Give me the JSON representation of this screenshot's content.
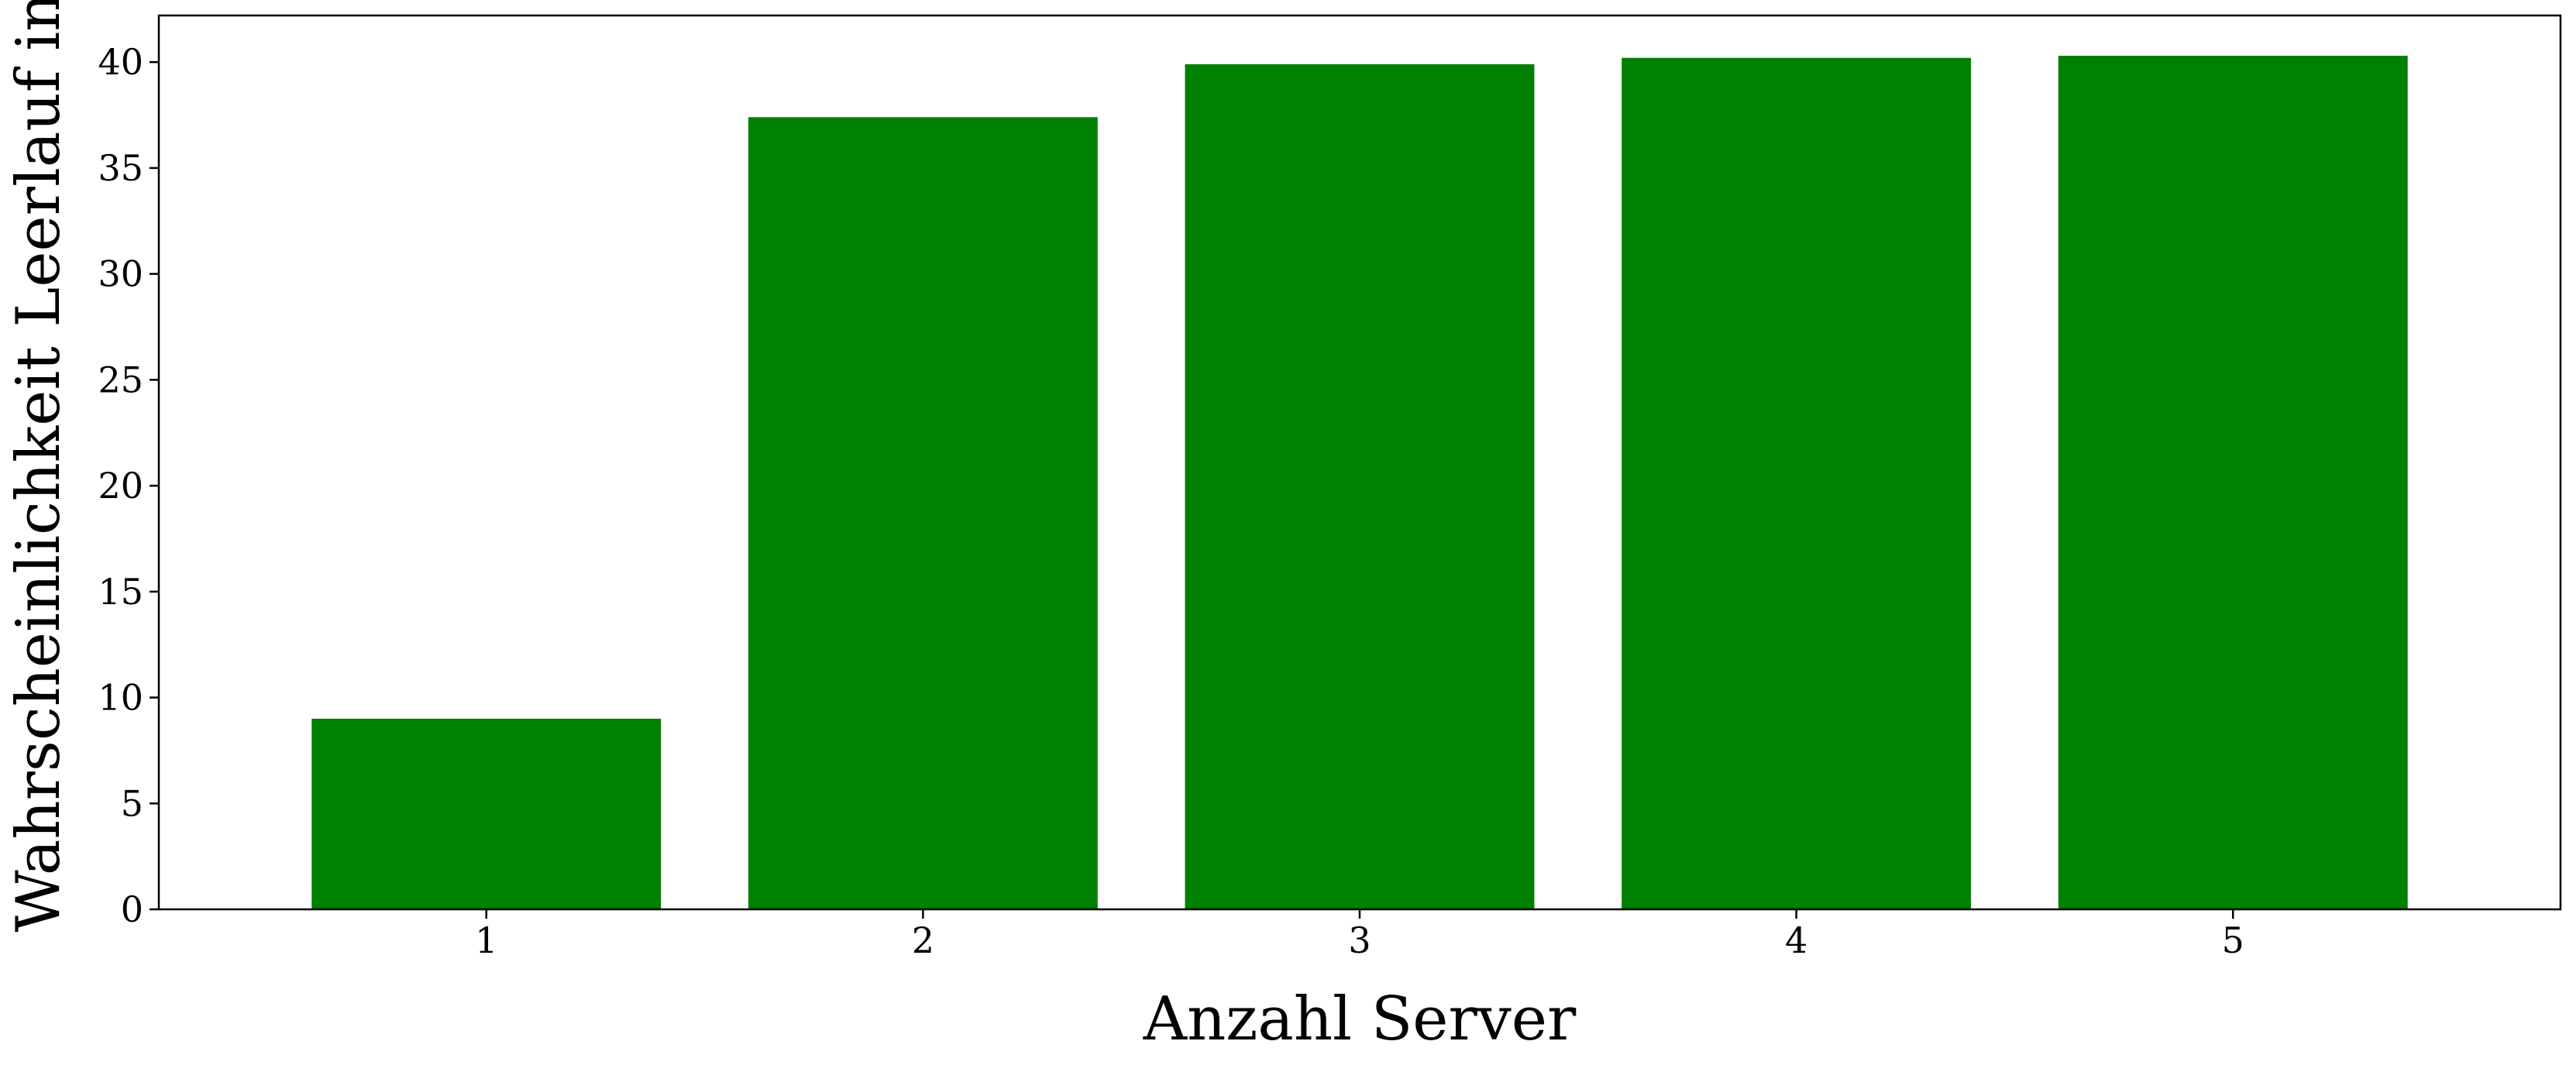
{
  "chart_data": {
    "type": "bar",
    "categories": [
      "1",
      "2",
      "3",
      "4",
      "5"
    ],
    "values": [
      9.0,
      37.4,
      39.9,
      40.2,
      40.3
    ],
    "title": "",
    "xlabel": "Anzahl Server",
    "ylabel": "Wahrscheinlichkeit Leerlauf in",
    "ylim": [
      0,
      42.2
    ],
    "yticks": [
      0,
      5,
      10,
      15,
      20,
      25,
      30,
      35,
      40
    ],
    "grid": false,
    "legend": "none",
    "bar_color": "#008000",
    "axis_color": "#000000"
  }
}
